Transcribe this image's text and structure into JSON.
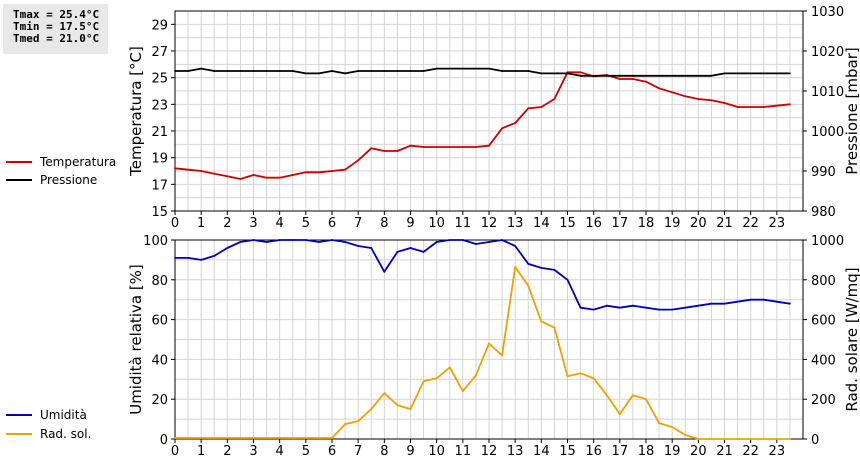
{
  "stats": {
    "tmax": "Tmax = 25.4°C",
    "tmin": "Tmin = 17.5°C",
    "tmed": "Tmed = 21.0°C"
  },
  "colors": {
    "temperature": "#cc0000",
    "pressure": "#000000",
    "humidity": "#0000bb",
    "radiation": "#f0a000",
    "grid": "#d4d4d4"
  },
  "chart_data": [
    {
      "type": "line",
      "xlim": [
        0,
        24
      ],
      "x_ticks": [
        0,
        1,
        2,
        3,
        4,
        5,
        6,
        7,
        8,
        9,
        10,
        11,
        12,
        13,
        14,
        15,
        16,
        17,
        18,
        19,
        20,
        21,
        22,
        23
      ],
      "grid": true,
      "legend_placement": "left",
      "y_left": {
        "label": "Temperatura [°C]",
        "lim": [
          15,
          30
        ],
        "ticks": [
          15,
          17,
          19,
          21,
          23,
          25,
          27,
          29
        ]
      },
      "y_right": {
        "label": "Pressione [mbar]",
        "lim": [
          980,
          1030
        ],
        "ticks": [
          980,
          990,
          1000,
          1010,
          1020,
          1030
        ]
      },
      "series": [
        {
          "name": "Temperatura",
          "axis": "left",
          "color": "#cc0000",
          "x": [
            0,
            0.5,
            1,
            1.5,
            2,
            2.5,
            3,
            3.5,
            4,
            4.5,
            5,
            5.5,
            6,
            6.5,
            7,
            7.5,
            8,
            8.5,
            9,
            9.5,
            10,
            10.5,
            11,
            11.5,
            12,
            12.5,
            13,
            13.5,
            14,
            14.5,
            15,
            15.5,
            16,
            16.5,
            17,
            17.5,
            18,
            18.5,
            19,
            19.5,
            20,
            20.5,
            21,
            21.5,
            22,
            22.5,
            23,
            23.5
          ],
          "y": [
            18.2,
            18.1,
            18.0,
            17.8,
            17.6,
            17.4,
            17.7,
            17.5,
            17.5,
            17.7,
            17.9,
            17.9,
            18.0,
            18.1,
            18.8,
            19.7,
            19.5,
            19.5,
            19.9,
            19.8,
            19.8,
            19.8,
            19.8,
            19.8,
            19.9,
            21.2,
            21.6,
            22.7,
            22.8,
            23.4,
            25.4,
            25.4,
            25.1,
            25.2,
            24.9,
            24.9,
            24.7,
            24.2,
            23.9,
            23.6,
            23.4,
            23.3,
            23.1,
            22.8,
            22.8,
            22.8,
            22.9,
            23.0
          ]
        },
        {
          "name": "Pressione",
          "axis": "right",
          "color": "#000000",
          "x": [
            0,
            0.5,
            1,
            1.5,
            2,
            2.5,
            3,
            3.5,
            4,
            4.5,
            5,
            5.5,
            6,
            6.5,
            7,
            7.5,
            8,
            8.5,
            9,
            9.5,
            10,
            10.5,
            11,
            11.5,
            12,
            12.5,
            13,
            13.5,
            14,
            14.5,
            15,
            15.5,
            16,
            16.5,
            17,
            17.5,
            18,
            18.5,
            19,
            19.5,
            20,
            20.5,
            21,
            21.5,
            22,
            22.5,
            23,
            23.5
          ],
          "y": [
            1015,
            1015,
            1015.6,
            1015,
            1015,
            1015,
            1015,
            1015,
            1015,
            1015,
            1014.4,
            1014.4,
            1015,
            1014.4,
            1015,
            1015,
            1015,
            1015,
            1015,
            1015,
            1015.6,
            1015.6,
            1015.6,
            1015.6,
            1015.6,
            1015,
            1015,
            1015,
            1014.4,
            1014.4,
            1014.4,
            1013.8,
            1013.8,
            1013.8,
            1013.8,
            1013.8,
            1013.8,
            1013.8,
            1013.8,
            1013.8,
            1013.8,
            1013.8,
            1014.4,
            1014.4,
            1014.4,
            1014.4,
            1014.4,
            1014.4
          ]
        }
      ]
    },
    {
      "type": "line",
      "xlim": [
        0,
        24
      ],
      "x_ticks": [
        0,
        1,
        2,
        3,
        4,
        5,
        6,
        7,
        8,
        9,
        10,
        11,
        12,
        13,
        14,
        15,
        16,
        17,
        18,
        19,
        20,
        21,
        22,
        23
      ],
      "grid": true,
      "legend_placement": "left",
      "y_left": {
        "label": "Umidità relativa [%]",
        "lim": [
          0,
          100
        ],
        "ticks": [
          0,
          20,
          40,
          60,
          80,
          100
        ]
      },
      "y_right": {
        "label": "Rad. solare [W/mq]",
        "lim": [
          0,
          1000
        ],
        "ticks": [
          0,
          200,
          400,
          600,
          800,
          1000
        ]
      },
      "series": [
        {
          "name": "Umidità",
          "axis": "left",
          "color": "#0000bb",
          "x": [
            0,
            0.5,
            1,
            1.5,
            2,
            2.5,
            3,
            3.5,
            4,
            4.5,
            5,
            5.5,
            6,
            6.5,
            7,
            7.5,
            8,
            8.5,
            9,
            9.5,
            10,
            10.5,
            11,
            11.5,
            12,
            12.5,
            13,
            13.5,
            14,
            14.5,
            15,
            15.5,
            16,
            16.5,
            17,
            17.5,
            18,
            18.5,
            19,
            19.5,
            20,
            20.5,
            21,
            21.5,
            22,
            22.5,
            23,
            23.5
          ],
          "y": [
            91,
            91,
            90,
            92,
            96,
            99,
            100,
            99,
            100,
            100,
            100,
            99,
            100,
            99,
            97,
            96,
            84,
            94,
            96,
            94,
            99,
            100,
            100,
            98,
            99,
            100,
            97,
            88,
            86,
            85,
            80,
            66,
            65,
            67,
            66,
            67,
            66,
            65,
            65,
            66,
            67,
            68,
            68,
            69,
            70,
            70,
            69,
            68
          ]
        },
        {
          "name": "Rad. sol.",
          "axis": "right",
          "color": "#f0a000",
          "x": [
            0,
            0.5,
            1,
            1.5,
            2,
            2.5,
            3,
            3.5,
            4,
            4.5,
            5,
            5.5,
            6,
            6.5,
            7,
            7.5,
            8,
            8.5,
            9,
            9.5,
            10,
            10.5,
            11,
            11.5,
            12,
            12.5,
            13,
            13.5,
            14,
            14.5,
            15,
            15.5,
            16,
            16.5,
            17,
            17.5,
            18,
            18.5,
            19,
            19.5,
            20,
            20.5,
            21,
            21.5,
            22,
            22.5,
            23,
            23.5
          ],
          "y": [
            5,
            5,
            5,
            5,
            5,
            5,
            5,
            5,
            5,
            5,
            5,
            5,
            5,
            75,
            90,
            150,
            230,
            170,
            150,
            290,
            305,
            360,
            240,
            320,
            480,
            420,
            865,
            770,
            590,
            560,
            315,
            330,
            305,
            220,
            125,
            220,
            200,
            80,
            60,
            20,
            0,
            0,
            0,
            0,
            0,
            0,
            0,
            0
          ]
        }
      ]
    }
  ]
}
